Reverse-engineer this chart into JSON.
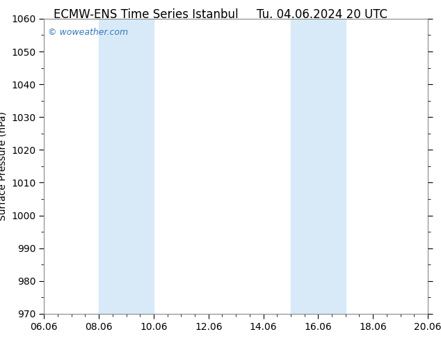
{
  "title_left": "ECMW-ENS Time Series Istanbul",
  "title_right": "Tu. 04.06.2024 20 UTC",
  "ylabel": "Surface Pressure (hPa)",
  "ylim": [
    970,
    1060
  ],
  "yticks": [
    970,
    980,
    990,
    1000,
    1010,
    1020,
    1030,
    1040,
    1050,
    1060
  ],
  "xlim": [
    0,
    14
  ],
  "xtick_positions": [
    0,
    2,
    4,
    6,
    8,
    10,
    12,
    14
  ],
  "xtick_labels": [
    "06.06",
    "08.06",
    "10.06",
    "12.06",
    "14.06",
    "16.06",
    "18.06",
    "20.06"
  ],
  "shaded_bands": [
    {
      "xmin": 2,
      "xmax": 4
    },
    {
      "xmin": 9,
      "xmax": 11
    }
  ],
  "band_color": "#d8eaf8",
  "background_color": "#ffffff",
  "plot_bg_color": "#ffffff",
  "title_fontsize": 12,
  "axis_fontsize": 10,
  "tick_fontsize": 10,
  "watermark_text": "© woweather.com",
  "watermark_color": "#3377bb",
  "watermark_fontsize": 9
}
